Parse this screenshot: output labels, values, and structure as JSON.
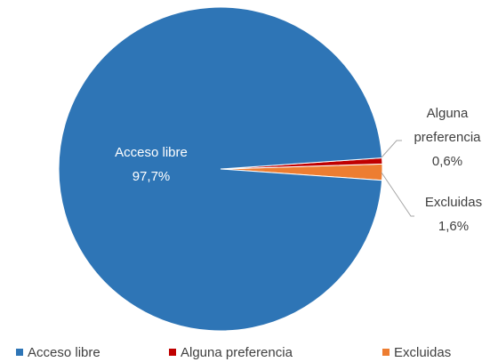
{
  "chart_data": {
    "type": "pie",
    "categories": [
      "Acceso libre",
      "Alguna preferencia",
      "Excluidas"
    ],
    "values": [
      97.7,
      0.6,
      1.6
    ],
    "value_labels": [
      "97,7%",
      "0,6%",
      "1,6%"
    ],
    "colors": [
      "#2e75b6",
      "#c00000",
      "#ed7d31"
    ],
    "legend": "bottom"
  }
}
